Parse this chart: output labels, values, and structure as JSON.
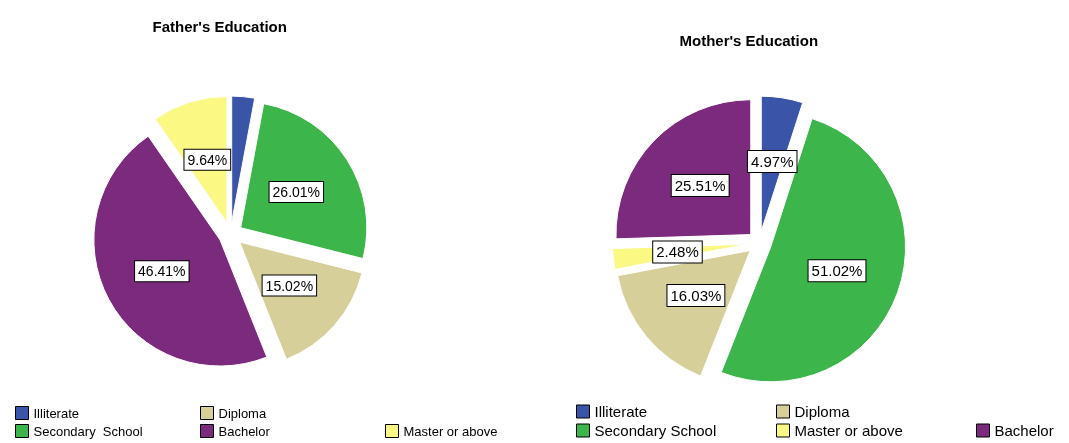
{
  "chart_data": [
    {
      "type": "pie",
      "title": "Father's Education",
      "categories": [
        "Illiterate",
        "Secondary  School",
        "Diploma",
        "Bachelor",
        "Master or above"
      ],
      "values": [
        2.92,
        26.01,
        15.02,
        46.41,
        9.64
      ],
      "colors": [
        "#3a55a8",
        "#3cb54a",
        "#d6cf9a",
        "#7b2a7e",
        "#fbf883"
      ],
      "value_labels": [
        null,
        "26.01%",
        "15.02%",
        "46.41%",
        "9.64%"
      ],
      "legend": "bottom"
    },
    {
      "type": "pie",
      "title": "Mother's Education",
      "categories": [
        "Illiterate",
        "Secondary School",
        "Diploma",
        "Master or above",
        "Bachelor"
      ],
      "values": [
        4.97,
        51.02,
        16.03,
        2.48,
        25.51
      ],
      "colors": [
        "#3a55a8",
        "#3cb54a",
        "#d6cf9a",
        "#fbf883",
        "#7b2a7e"
      ],
      "value_labels": [
        "4.97%",
        "51.02%",
        "16.03%",
        "2.48%",
        "25.51%"
      ],
      "legend": "bottom"
    }
  ]
}
